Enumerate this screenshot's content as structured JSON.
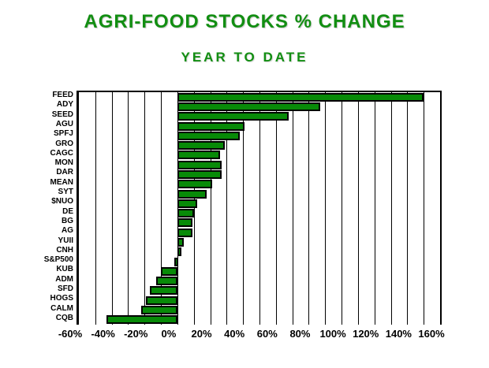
{
  "page": {
    "background": "#ffffff"
  },
  "header": {
    "title": "AGRI-FOOD STOCKS % CHANGE",
    "subtitle": "YEAR TO DATE",
    "title_color": "#128e12"
  },
  "chart_data": {
    "type": "bar",
    "orientation": "horizontal",
    "title": "AGRI-FOOD STOCKS % CHANGE",
    "subtitle": "YEAR TO DATE",
    "unit": "%",
    "categories": [
      "FEED",
      "ADY",
      "SEED",
      "AGU",
      "SPFJ",
      "GRO",
      "CAGC",
      "MON",
      "DAR",
      "MEAN",
      "SYT",
      "$NUO",
      "DE",
      "BG",
      "AG",
      "YUII",
      "CNH",
      "S&P500",
      "KUB",
      "ADM",
      "SFD",
      "HOGS",
      "CALM",
      "CQB"
    ],
    "values": [
      150,
      87,
      68,
      41,
      38,
      29,
      26,
      27,
      27,
      21,
      18,
      12,
      10,
      9,
      9,
      4,
      2,
      -2,
      -10,
      -13,
      -17,
      -19,
      -22,
      -43
    ],
    "xlim": [
      -60,
      160
    ],
    "x_tick_step": 20,
    "gridline_step": 10,
    "x_tick_labels": [
      "-60%",
      "-40%",
      "-20%",
      "0%",
      "20%",
      "40%",
      "60%",
      "80%",
      "100%",
      "120%",
      "140%",
      "160%"
    ],
    "grid": true,
    "legend": "none",
    "bar_color": "#088a08",
    "bar_border_color": "#000000",
    "axis_color": "#000000"
  }
}
